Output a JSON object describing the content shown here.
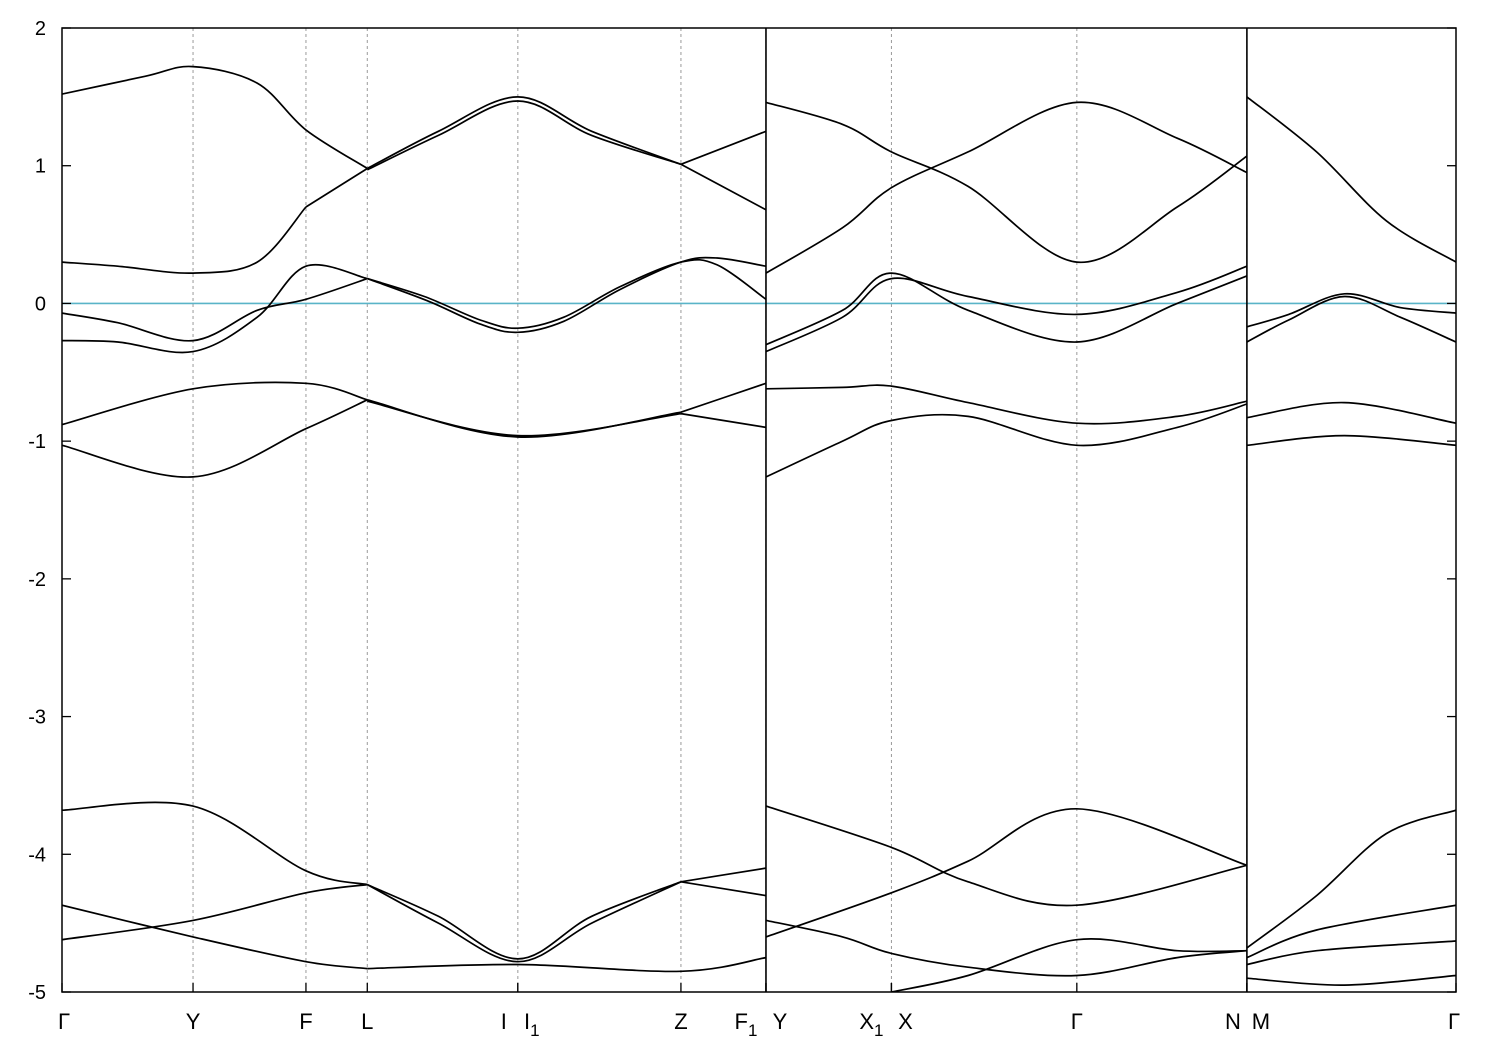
{
  "chart_data": {
    "type": "line",
    "title": "",
    "xlabel": "",
    "ylabel": "",
    "ylim": [
      -5,
      2
    ],
    "y_ticks": [
      "2",
      "1",
      "0",
      "-1",
      "-2",
      "-3",
      "-4",
      "-5"
    ],
    "y_tick_values": [
      2,
      1,
      0,
      -1,
      -2,
      -3,
      -4,
      -5
    ],
    "grid": "dashed vertical lines at high-symmetry points",
    "fermi_level": 0,
    "fermi_color": "#5ab4c8",
    "band_color": "#000000",
    "k_range": [
      0,
      1000
    ],
    "k_points": [
      {
        "label": "Γ",
        "sub": "",
        "k": 0
      },
      {
        "label": "Y",
        "sub": "",
        "k": 94
      },
      {
        "label": "F",
        "sub": "",
        "k": 175
      },
      {
        "label": "L",
        "sub": "",
        "k": 219
      },
      {
        "label": "I",
        "sub": "",
        "k": 327
      },
      {
        "label": "I",
        "sub": "1",
        "k": 327
      },
      {
        "label": "Z",
        "sub": "",
        "k": 444
      },
      {
        "label": "F",
        "sub": "1",
        "k": 505
      },
      {
        "label": "Y",
        "sub": "",
        "k": 505
      },
      {
        "label": "X",
        "sub": "1",
        "k": 595
      },
      {
        "label": "X",
        "sub": "",
        "k": 595
      },
      {
        "label": "Γ",
        "sub": "",
        "k": 728
      },
      {
        "label": "N",
        "sub": "",
        "k": 850
      },
      {
        "label": "M",
        "sub": "",
        "k": 850
      },
      {
        "label": "Γ",
        "sub": "",
        "k": 1000
      }
    ],
    "series": [
      {
        "segment": "Γ-Y-F-L-I|I1-Z-F1",
        "bands": [
          {
            "k": [
              0,
              40,
              94,
              140,
              175,
              219
            ],
            "e": [
              -0.07,
              -0.14,
              -0.27,
              -0.05,
              0.03,
              0.18
            ]
          },
          {
            "k": [
              219,
              260,
              300,
              327,
              360,
              400,
              444,
              470,
              505
            ],
            "e": [
              0.18,
              0.05,
              -0.12,
              -0.18,
              -0.1,
              0.12,
              0.3,
              0.28,
              0.03
            ]
          },
          {
            "k": [
              219,
              262,
              300,
              327,
              360,
              400,
              444,
              470,
              505
            ],
            "e": [
              0.18,
              0.02,
              -0.15,
              -0.21,
              -0.13,
              0.1,
              0.3,
              0.33,
              0.27
            ]
          },
          {
            "k": [
              0,
              40,
              94,
              140,
              175,
              219
            ],
            "e": [
              -0.27,
              -0.28,
              -0.35,
              -0.1,
              0.27,
              0.18
            ]
          },
          {
            "k": [
              0,
              40,
              94,
              140,
              175
            ],
            "e": [
              0.3,
              0.27,
              0.22,
              0.3,
              0.7
            ]
          },
          {
            "k": [
              175,
              219
            ],
            "e": [
              0.7,
              0.98
            ]
          },
          {
            "k": [
              219,
              270,
              327,
              380,
              444
            ],
            "e": [
              0.98,
              1.25,
              1.5,
              1.25,
              1.01
            ]
          },
          {
            "k": [
              219,
              270,
              327,
              380,
              444
            ],
            "e": [
              0.97,
              1.22,
              1.47,
              1.22,
              1.01
            ]
          },
          {
            "k": [
              444,
              505
            ],
            "e": [
              1.01,
              1.25
            ]
          },
          {
            "k": [
              444,
              505
            ],
            "e": [
              1.01,
              0.68
            ]
          },
          {
            "k": [
              0,
              60,
              94,
              140,
              175,
              219
            ],
            "e": [
              1.52,
              1.65,
              1.72,
              1.6,
              1.26,
              0.98
            ]
          },
          {
            "k": [
              0,
              94,
              175,
              219
            ],
            "e": [
              -0.88,
              -0.62,
              -0.58,
              -0.7
            ]
          },
          {
            "k": [
              0,
              94,
              175,
              219
            ],
            "e": [
              -1.03,
              -1.26,
              -0.91,
              -0.7
            ]
          },
          {
            "k": [
              219,
              327,
              444
            ],
            "e": [
              -0.7,
              -0.97,
              -0.79
            ]
          },
          {
            "k": [
              219,
              327,
              444
            ],
            "e": [
              -0.71,
              -0.96,
              -0.8
            ]
          },
          {
            "k": [
              444,
              505
            ],
            "e": [
              -0.79,
              -0.58
            ]
          },
          {
            "k": [
              444,
              505
            ],
            "e": [
              -0.8,
              -0.9
            ]
          },
          {
            "k": [
              0,
              94,
              175,
              219
            ],
            "e": [
              -3.68,
              -3.65,
              -4.12,
              -4.22
            ]
          },
          {
            "k": [
              0,
              94,
              175,
              219
            ],
            "e": [
              -4.62,
              -4.48,
              -4.28,
              -4.22
            ]
          },
          {
            "k": [
              0,
              94,
              175,
              219
            ],
            "e": [
              -4.37,
              -4.6,
              -4.78,
              -4.83
            ]
          },
          {
            "k": [
              219,
              270,
              327,
              380,
              444
            ],
            "e": [
              -4.22,
              -4.45,
              -4.76,
              -4.45,
              -4.2
            ]
          },
          {
            "k": [
              219,
              270,
              327,
              380,
              444
            ],
            "e": [
              -4.22,
              -4.5,
              -4.78,
              -4.5,
              -4.2
            ]
          },
          {
            "k": [
              444,
              505
            ],
            "e": [
              -4.2,
              -4.1
            ]
          },
          {
            "k": [
              444,
              505
            ],
            "e": [
              -4.2,
              -4.3
            ]
          },
          {
            "k": [
              219,
              327,
              444,
              505
            ],
            "e": [
              -4.83,
              -4.8,
              -4.85,
              -4.75
            ]
          }
        ]
      },
      {
        "segment": "Y-X1|X-Γ-N",
        "bands": [
          {
            "k": [
              505,
              560,
              595,
              650,
              728,
              800,
              850
            ],
            "e": [
              -0.35,
              -0.1,
              0.18,
              0.05,
              -0.08,
              0.08,
              0.27
            ]
          },
          {
            "k": [
              505,
              560,
              595,
              650,
              728,
              800,
              850
            ],
            "e": [
              -0.3,
              -0.05,
              0.22,
              -0.05,
              -0.28,
              0.0,
              0.2
            ]
          },
          {
            "k": [
              505,
              560,
              595,
              650,
              728,
              800,
              850
            ],
            "e": [
              0.22,
              0.55,
              0.84,
              1.1,
              1.46,
              1.2,
              0.95
            ]
          },
          {
            "k": [
              505,
              560,
              595,
              650,
              728,
              800,
              850
            ],
            "e": [
              1.46,
              1.3,
              1.1,
              0.85,
              0.3,
              0.7,
              1.07
            ]
          },
          {
            "k": [
              505,
              560,
              595,
              650,
              728,
              800,
              850
            ],
            "e": [
              -0.62,
              -0.61,
              -0.6,
              -0.72,
              -0.87,
              -0.82,
              -0.71
            ]
          },
          {
            "k": [
              505,
              560,
              595,
              650,
              728,
              800,
              850
            ],
            "e": [
              -1.26,
              -1.0,
              -0.85,
              -0.82,
              -1.03,
              -0.9,
              -0.73
            ]
          },
          {
            "k": [
              505,
              595,
              650,
              728,
              850
            ],
            "e": [
              -3.65,
              -3.95,
              -4.2,
              -4.37,
              -4.08
            ]
          },
          {
            "k": [
              505,
              595,
              650,
              728,
              850
            ],
            "e": [
              -4.6,
              -4.28,
              -4.05,
              -3.67,
              -4.08
            ]
          },
          {
            "k": [
              505,
              560,
              595,
              650,
              728,
              800,
              850
            ],
            "e": [
              -4.48,
              -4.6,
              -4.72,
              -4.82,
              -4.88,
              -4.75,
              -4.7
            ]
          },
          {
            "k": [
              595,
              650,
              728,
              800,
              850
            ],
            "e": [
              -5.0,
              -4.88,
              -4.62,
              -4.7,
              -4.7
            ]
          }
        ]
      },
      {
        "segment": "M-Γ",
        "bands": [
          {
            "k": [
              850,
              880,
              920,
              960,
              1000
            ],
            "e": [
              -0.17,
              -0.08,
              0.07,
              -0.03,
              -0.07
            ]
          },
          {
            "k": [
              850,
              880,
              920,
              960,
              1000
            ],
            "e": [
              -0.28,
              -0.12,
              0.05,
              -0.1,
              -0.28
            ]
          },
          {
            "k": [
              850,
              900,
              950,
              1000
            ],
            "e": [
              1.5,
              1.1,
              0.6,
              0.3
            ]
          },
          {
            "k": [
              850,
              920,
              1000
            ],
            "e": [
              -0.83,
              -0.72,
              -0.87
            ]
          },
          {
            "k": [
              850,
              920,
              1000
            ],
            "e": [
              -1.03,
              -0.96,
              -1.03
            ]
          },
          {
            "k": [
              850,
              900,
              950,
              1000
            ],
            "e": [
              -4.68,
              -4.3,
              -3.85,
              -3.68
            ]
          },
          {
            "k": [
              850,
              900,
              1000
            ],
            "e": [
              -4.75,
              -4.55,
              -4.37
            ]
          },
          {
            "k": [
              850,
              900,
              1000
            ],
            "e": [
              -4.8,
              -4.7,
              -4.63
            ]
          },
          {
            "k": [
              850,
              920,
              1000
            ],
            "e": [
              -4.9,
              -4.95,
              -4.88
            ]
          }
        ]
      }
    ]
  }
}
